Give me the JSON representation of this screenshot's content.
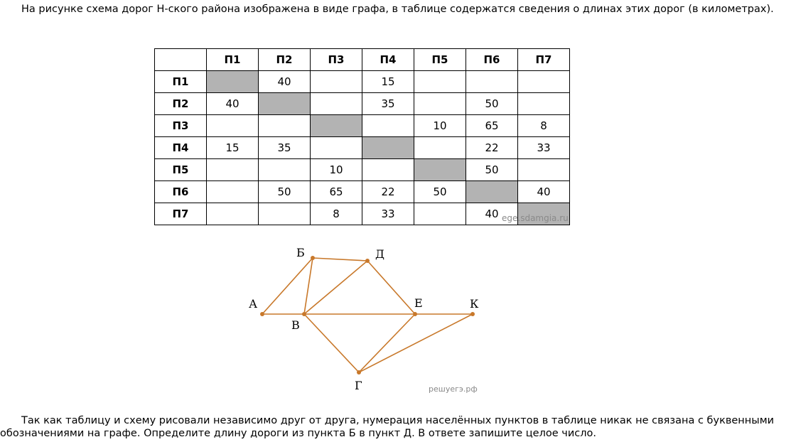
{
  "intro_text": "На рисунке схема дорог Н-ского района изображена в виде графа, в таблице содержатся сведения о длинах этих дорог (в километрах).",
  "question_text": "Так как таблицу и схему рисовали независимо друг от друга, нумерация населённых пунктов в таблице никак не связана с буквенными обозначениями на графе. Определите длину дороги из пункта Б в пункт Д. В ответе запишите целое число.",
  "table": {
    "headers": [
      "",
      "П1",
      "П2",
      "П3",
      "П4",
      "П5",
      "П6",
      "П7"
    ],
    "rows": [
      {
        "label": "П1",
        "cells": [
          "",
          "40",
          "",
          "15",
          "",
          "",
          ""
        ]
      },
      {
        "label": "П2",
        "cells": [
          "40",
          "",
          "",
          "35",
          "",
          "50",
          ""
        ]
      },
      {
        "label": "П3",
        "cells": [
          "",
          "",
          "",
          "",
          "10",
          "65",
          "8"
        ]
      },
      {
        "label": "П4",
        "cells": [
          "15",
          "35",
          "",
          "",
          "",
          "22",
          "33"
        ]
      },
      {
        "label": "П5",
        "cells": [
          "",
          "",
          "10",
          "",
          "",
          "50",
          ""
        ]
      },
      {
        "label": "П6",
        "cells": [
          "",
          "50",
          "65",
          "22",
          "50",
          "",
          "40"
        ]
      },
      {
        "label": "П7",
        "cells": [
          "",
          "",
          "8",
          "33",
          "",
          "40",
          ""
        ]
      }
    ],
    "watermark": "ege.sdamgia.ru"
  },
  "graph": {
    "edge_color": "#c8782a",
    "node_color": "#c8782a",
    "nodes": [
      {
        "id": "A",
        "label": "А"
      },
      {
        "id": "B",
        "label": "Б"
      },
      {
        "id": "V",
        "label": "В"
      },
      {
        "id": "G",
        "label": "Г"
      },
      {
        "id": "D",
        "label": "Д"
      },
      {
        "id": "E",
        "label": "Е"
      },
      {
        "id": "K",
        "label": "К"
      }
    ],
    "edges": [
      [
        "A",
        "B"
      ],
      [
        "A",
        "V"
      ],
      [
        "B",
        "V"
      ],
      [
        "B",
        "D"
      ],
      [
        "V",
        "D"
      ],
      [
        "V",
        "E"
      ],
      [
        "V",
        "G"
      ],
      [
        "D",
        "E"
      ],
      [
        "E",
        "K"
      ],
      [
        "E",
        "G"
      ],
      [
        "G",
        "K"
      ]
    ],
    "watermark": "решуегэ.рф"
  }
}
